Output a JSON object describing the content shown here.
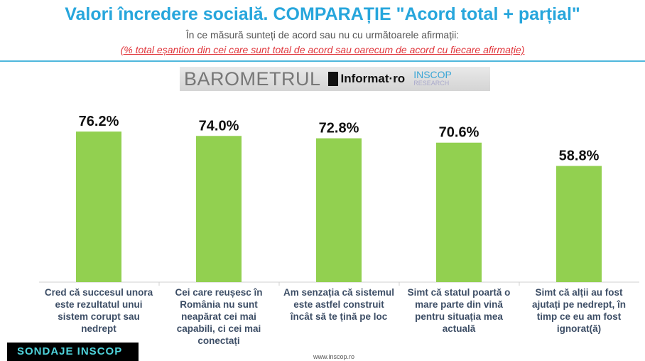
{
  "header": {
    "title": "Valori încredere socială. COMPARAȚIE \"Acord total + parțial\"",
    "subtitle": "În ce măsură sunteți de acord sau nu cu următoarele afirmații:",
    "note": "(% total eșantion din cei care sunt total de acord sau oarecum de acord cu fiecare afirmație)"
  },
  "logo": {
    "barometer": "BAROMETRUL",
    "informat": "Informat·ro",
    "inscop": "INSCOP",
    "research": "RESEARCH"
  },
  "chart_data": {
    "type": "bar",
    "categories": [
      "Cred că succesul unora este rezultatul unui sistem corupt sau nedrept",
      "Cei care reușesc în România nu sunt neapărat cei mai capabili, ci cei mai conectați",
      "Am senzația că sistemul este astfel construit încât să te țină pe loc",
      "Simt că statul poartă o mare parte din vină pentru situația mea actuală",
      "Simt că alții au fost ajutați pe nedrept, în timp ce eu am fost ignorat(ă)"
    ],
    "values": [
      76.2,
      74.0,
      72.8,
      70.6,
      58.8
    ],
    "labels": [
      "76.2%",
      "74.0%",
      "72.8%",
      "70.6%",
      "58.8%"
    ],
    "ylim": [
      0,
      100
    ],
    "grid": false,
    "bar_color": "#92d050"
  },
  "footer": {
    "badge": "SONDAJE INSCOP",
    "url": "www.inscop.ro"
  }
}
